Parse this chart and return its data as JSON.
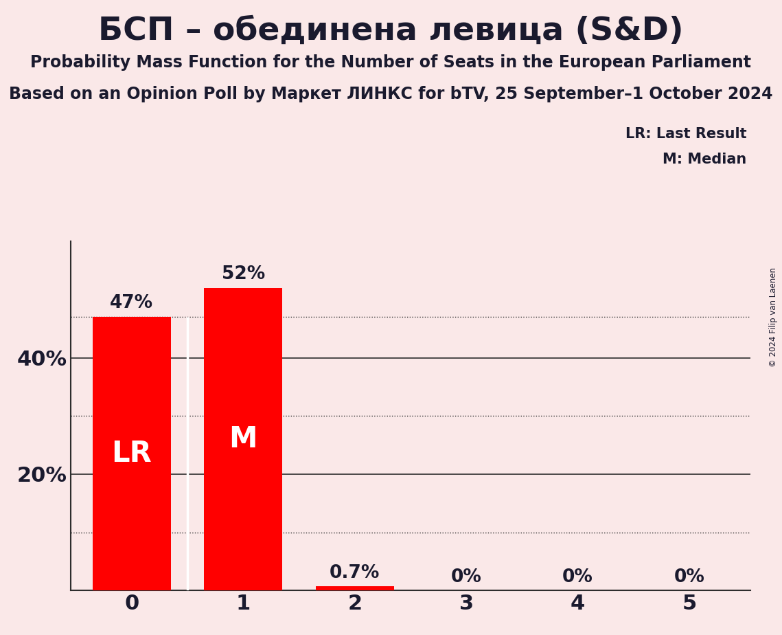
{
  "title": "БСП – обединена левица (S&D)",
  "subtitle1": "Probability Mass Function for the Number of Seats in the European Parliament",
  "subtitle2": "Based on an Opinion Poll by Маркет ЛИНКС for bTV, 25 September–1 October 2024",
  "copyright": "© 2024 Filip van Laenen",
  "categories": [
    0,
    1,
    2,
    3,
    4,
    5
  ],
  "values": [
    0.47,
    0.52,
    0.007,
    0.0,
    0.0,
    0.0
  ],
  "bar_labels": [
    "47%",
    "52%",
    "0.7%",
    "0%",
    "0%",
    "0%"
  ],
  "bar_color": "#FF0000",
  "lr_bar": 0,
  "lr_label": "LR",
  "median_bar": 1,
  "median_label": "M",
  "lr_value": 0.47,
  "lr_line_label": "LR: Last Result",
  "median_line_label": "M: Median",
  "background_color": "#FAE8E8",
  "bar_text_color": "#FFFFFF",
  "axis_text_color": "#1a1a2e",
  "title_color": "#1a1a2e",
  "ylim": [
    0,
    0.6
  ],
  "solid_gridlines": [
    0.2,
    0.4
  ],
  "dotted_gridlines": [
    0.1,
    0.3,
    0.47
  ],
  "bar_width": 0.7
}
